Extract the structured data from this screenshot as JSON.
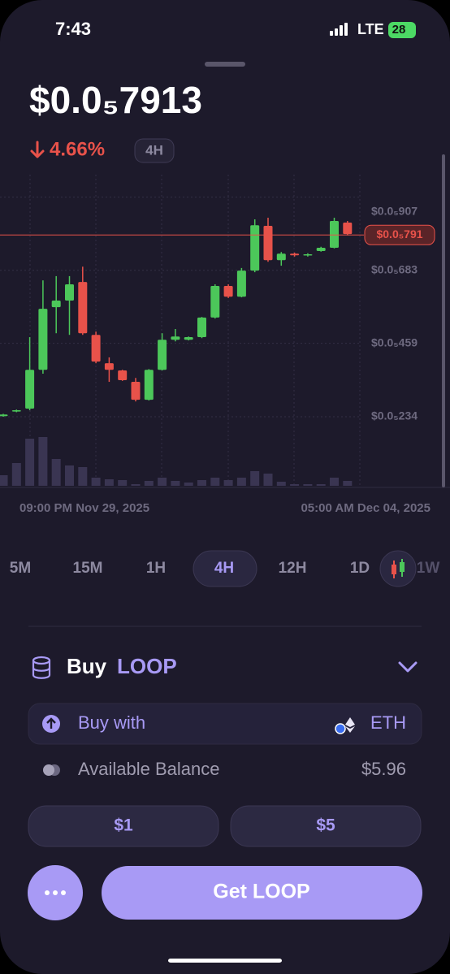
{
  "status_bar": {
    "time": "7:43",
    "network": "LTE",
    "battery": "28"
  },
  "header": {
    "price": "$0.0₅7913",
    "change": "4.66%",
    "interval": "4H"
  },
  "chart_data": {
    "type": "candlestick",
    "open": [
      2.36e-06,
      2.5e-06,
      2.59e-06,
      3.78e-06,
      5.7e-06,
      5.9e-06,
      6.47e-06,
      4.85e-06,
      3.98e-06,
      3.76e-06,
      3.41e-06,
      2.86e-06,
      3.78e-06,
      4.7e-06,
      4.7e-06,
      4.78e-06,
      5.38e-06,
      6.35e-06,
      6.02e-06,
      6.82e-06,
      8.19e-06,
      7.14e-06,
      7.34e-06,
      7.29e-06,
      7.42e-06,
      7.52e-06,
      8.29e-06
    ],
    "high": [
      2.43e-06,
      2.56e-06,
      4.78e-06,
      6.52e-06,
      6.65e-06,
      6.65e-06,
      6.94e-06,
      4.95e-06,
      4.16e-06,
      3.78e-06,
      3.53e-06,
      3.8e-06,
      4.9e-06,
      5.03e-06,
      4.8e-06,
      5.4e-06,
      6.4e-06,
      6.4e-06,
      6.9e-06,
      8.39e-06,
      8.44e-06,
      7.39e-06,
      7.37e-06,
      7.35e-06,
      7.55e-06,
      8.44e-06,
      8.34e-06
    ],
    "low": [
      2.34e-06,
      2.48e-06,
      2.54e-06,
      3.66e-06,
      4.9e-06,
      4.85e-06,
      4.85e-06,
      3.98e-06,
      3.41e-06,
      3.44e-06,
      2.81e-06,
      2.84e-06,
      3.76e-06,
      4.65e-06,
      4.68e-06,
      4.75e-06,
      5.35e-06,
      5.98e-06,
      6e-06,
      6.77e-06,
      7.09e-06,
      6.97e-06,
      7.25e-06,
      7.25e-06,
      7.4e-06,
      7.5e-06,
      7.9e-06
    ],
    "close": [
      2.41e-06,
      2.54e-06,
      3.78e-06,
      5.65e-06,
      5.9e-06,
      6.4e-06,
      4.9e-06,
      4.03e-06,
      3.78e-06,
      3.46e-06,
      2.86e-06,
      3.78e-06,
      4.7e-06,
      4.8e-06,
      4.78e-06,
      5.38e-06,
      6.35e-06,
      6.02e-06,
      6.82e-06,
      8.21e-06,
      7.14e-06,
      7.34e-06,
      7.29e-06,
      7.32e-06,
      7.52e-06,
      8.34e-06,
      7.94e-06
    ],
    "volume": [
      13,
      28,
      58,
      60,
      33,
      25,
      23,
      10,
      8,
      7,
      2,
      6,
      10,
      6,
      4,
      7,
      10,
      7,
      10,
      18,
      15,
      5,
      2,
      2,
      2,
      10,
      6
    ],
    "up_color": "#4cc75a",
    "down_color": "#e8524a",
    "ylim": [
      1.75e-07,
      9.76e-06
    ],
    "yticks": [
      {
        "value": 9.07e-06,
        "label": "$0.0₅907"
      },
      {
        "value": 6.83e-06,
        "label": "$0.0₅683"
      },
      {
        "value": 4.59e-06,
        "label": "$0.0₅459"
      },
      {
        "value": 2.34e-06,
        "label": "$0.0₅234"
      }
    ],
    "current_price": {
      "value": 7.91e-06,
      "label": "$0.0₅791"
    },
    "x_labels": [
      "09:00 PM Nov 29, 2025",
      "05:00 AM Dec 04, 2025"
    ],
    "grid": true
  },
  "timeframes": [
    "5M",
    "15M",
    "1H",
    "4H",
    "12H",
    "1D",
    "1W"
  ],
  "selected_timeframe": 3,
  "buy": {
    "action": "Buy",
    "token": "LOOP",
    "pay_label": "Buy with",
    "pay_token": "ETH",
    "balance_label": "Available Balance",
    "balance": "$5.96",
    "amounts": [
      "$1",
      "$5"
    ],
    "cta": "Get LOOP"
  }
}
